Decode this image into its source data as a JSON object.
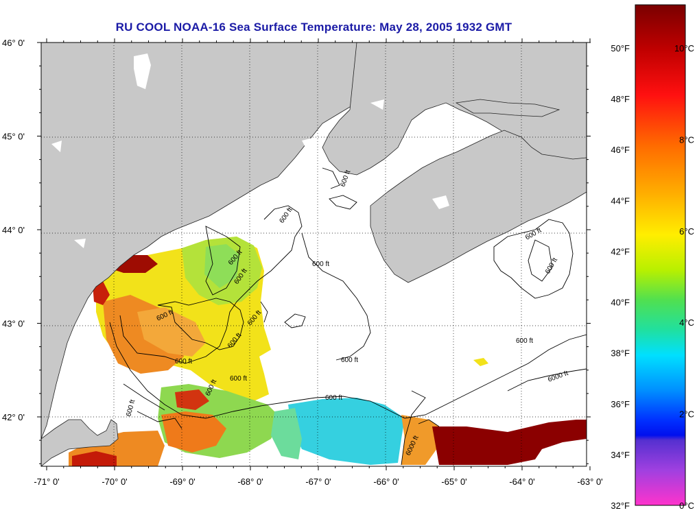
{
  "title": "RU COOL  NOAA-16  Sea Surface Temperature:  May 28, 2005 1932 GMT",
  "map": {
    "lat_ticks": [
      {
        "value": 46,
        "label": "46° 0'"
      },
      {
        "value": 45,
        "label": "45° 0'"
      },
      {
        "value": 44,
        "label": "44° 0'"
      },
      {
        "value": 43,
        "label": "43° 0'"
      },
      {
        "value": 42,
        "label": "42° 0'"
      }
    ],
    "lon_ticks": [
      {
        "value": -71,
        "label": "-71° 0'"
      },
      {
        "value": -70,
        "label": "-70° 0'"
      },
      {
        "value": -69,
        "label": "-69° 0'"
      },
      {
        "value": -68,
        "label": "-68° 0'"
      },
      {
        "value": -67,
        "label": "-67° 0'"
      },
      {
        "value": -66,
        "label": "-66° 0'"
      },
      {
        "value": -65,
        "label": "-65° 0'"
      },
      {
        "value": -64,
        "label": "-64° 0'"
      },
      {
        "value": -63,
        "label": "-63° 0'"
      }
    ],
    "contour_labels": [
      "600 ft",
      "600 ft",
      "600 ft",
      "600 ft",
      "600 ft",
      "600 ft",
      "600 ft",
      "600 ft",
      "600 ft",
      "600 ft",
      "600 ft",
      "600 ft",
      "600 ft",
      "600 ft",
      "600 ft",
      "600 ft",
      "600 ft",
      "6000 ft",
      "6000 ft"
    ],
    "colors": {
      "land": "#c8c8c8",
      "cloud": "#ffffff",
      "warm_max": "#8b0000",
      "warm": "#dd2a0c",
      "orange": "#ee8a22",
      "yellow": "#f2e21a",
      "green_yellow": "#b4e23a",
      "green": "#70d860",
      "cyan": "#35d0e0"
    }
  },
  "legend": {
    "f_labels": [
      {
        "value": 50,
        "label": "50°F"
      },
      {
        "value": 48,
        "label": "48°F"
      },
      {
        "value": 46,
        "label": "46°F"
      },
      {
        "value": 44,
        "label": "44°F"
      },
      {
        "value": 42,
        "label": "42°F"
      },
      {
        "value": 40,
        "label": "40°F"
      },
      {
        "value": 38,
        "label": "38°F"
      },
      {
        "value": 36,
        "label": "36°F"
      },
      {
        "value": 34,
        "label": "34°F"
      },
      {
        "value": 32,
        "label": "32°F"
      }
    ],
    "c_labels": [
      {
        "value": 10,
        "label": "10°C"
      },
      {
        "value": 8,
        "label": "8°C"
      },
      {
        "value": 6,
        "label": "6°C"
      },
      {
        "value": 4,
        "label": "4°C"
      },
      {
        "value": 2,
        "label": "2°C"
      },
      {
        "value": 0,
        "label": "0°C"
      }
    ]
  }
}
